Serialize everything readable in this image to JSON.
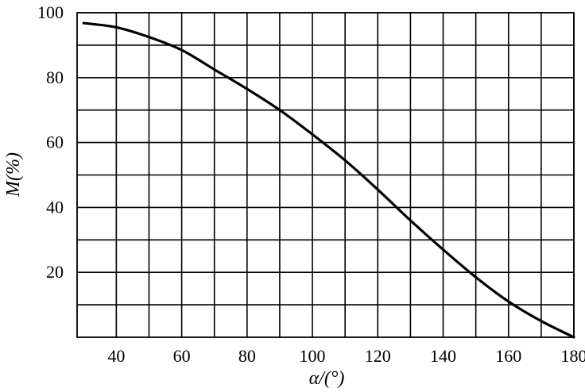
{
  "chart_data": {
    "type": "line",
    "xlabel": "α/(°)",
    "ylabel": "M(%)",
    "xlim": [
      28,
      180
    ],
    "ylim": [
      0,
      100
    ],
    "x_ticks": [
      40,
      60,
      80,
      100,
      120,
      140,
      160,
      180
    ],
    "y_ticks": [
      20,
      40,
      60,
      80,
      100
    ],
    "x_grid": [
      40,
      50,
      60,
      70,
      80,
      90,
      100,
      110,
      120,
      130,
      140,
      150,
      160,
      170,
      180
    ],
    "y_grid": [
      10,
      20,
      30,
      40,
      50,
      60,
      70,
      80,
      90,
      100
    ],
    "grid": true,
    "series": [
      {
        "x": [
          30,
          40,
          50,
          60,
          70,
          80,
          90,
          100,
          110,
          120,
          130,
          140,
          150,
          160,
          170,
          180
        ],
        "values": [
          96.8,
          95.5,
          92.5,
          88.5,
          82.5,
          76.5,
          70,
          62.5,
          54.5,
          45.5,
          36,
          27,
          18.5,
          11,
          5,
          0
        ]
      }
    ]
  }
}
